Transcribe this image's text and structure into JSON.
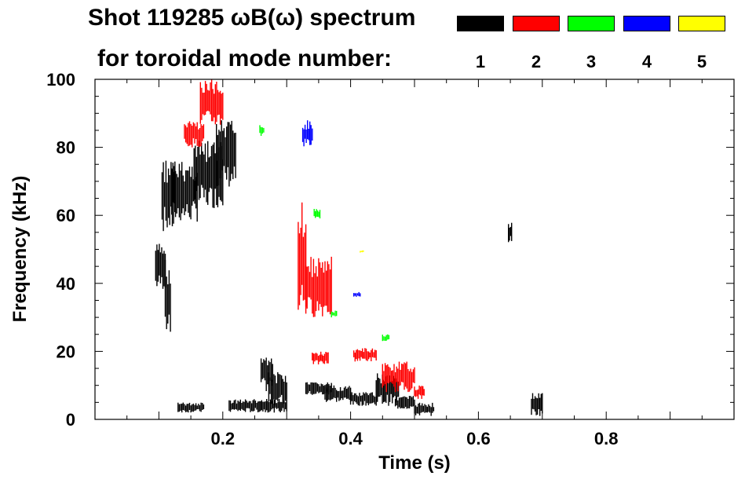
{
  "chart_data": {
    "type": "heatmap",
    "title_line1": "Shot 119285 ωB(ω) spectrum",
    "title_line2": "for toroidal mode number:",
    "xlabel": "Time (s)",
    "ylabel": "Frequency (kHz)",
    "xlim": [
      0.0,
      1.0
    ],
    "ylim": [
      0,
      100
    ],
    "x_ticks": [
      {
        "value": 0.2,
        "label": "0.2"
      },
      {
        "value": 0.4,
        "label": "0.4"
      },
      {
        "value": 0.6,
        "label": "0.6"
      },
      {
        "value": 0.8,
        "label": "0.8"
      }
    ],
    "y_ticks": [
      {
        "value": 0,
        "label": "0"
      },
      {
        "value": 20,
        "label": "20"
      },
      {
        "value": 40,
        "label": "40"
      },
      {
        "value": 60,
        "label": "60"
      },
      {
        "value": 80,
        "label": "80"
      },
      {
        "value": 100,
        "label": "100"
      }
    ],
    "legend": [
      {
        "mode": "1",
        "color": "#000000"
      },
      {
        "mode": "2",
        "color": "#ff0000"
      },
      {
        "mode": "3",
        "color": "#00ff00"
      },
      {
        "mode": "4",
        "color": "#0000ff"
      },
      {
        "mode": "5",
        "color": "#ffff00"
      }
    ],
    "series": [
      {
        "mode": "1",
        "color": "#000000",
        "regions": [
          {
            "t0": 0.095,
            "t1": 0.11,
            "f0": 38,
            "f1": 52
          },
          {
            "t0": 0.105,
            "t1": 0.125,
            "f0": 55,
            "f1": 77
          },
          {
            "t0": 0.12,
            "t1": 0.16,
            "f0": 58,
            "f1": 76
          },
          {
            "t0": 0.155,
            "t1": 0.2,
            "f0": 62,
            "f1": 82
          },
          {
            "t0": 0.19,
            "t1": 0.22,
            "f0": 68,
            "f1": 88
          },
          {
            "t0": 0.11,
            "t1": 0.118,
            "f0": 22,
            "f1": 48
          },
          {
            "t0": 0.26,
            "t1": 0.278,
            "f0": 8,
            "f1": 20
          },
          {
            "t0": 0.272,
            "t1": 0.3,
            "f0": 4,
            "f1": 14
          },
          {
            "t0": 0.13,
            "t1": 0.17,
            "f0": 2,
            "f1": 5
          },
          {
            "t0": 0.21,
            "t1": 0.3,
            "f0": 2,
            "f1": 6
          },
          {
            "t0": 0.33,
            "t1": 0.37,
            "f0": 7,
            "f1": 11
          },
          {
            "t0": 0.36,
            "t1": 0.4,
            "f0": 5,
            "f1": 10
          },
          {
            "t0": 0.4,
            "t1": 0.44,
            "f0": 4,
            "f1": 8
          },
          {
            "t0": 0.44,
            "t1": 0.475,
            "f0": 4,
            "f1": 14
          },
          {
            "t0": 0.47,
            "t1": 0.5,
            "f0": 3,
            "f1": 7
          },
          {
            "t0": 0.5,
            "t1": 0.53,
            "f0": 1,
            "f1": 5
          },
          {
            "t0": 0.647,
            "t1": 0.652,
            "f0": 52,
            "f1": 58
          },
          {
            "t0": 0.683,
            "t1": 0.7,
            "f0": 1,
            "f1": 8
          }
        ]
      },
      {
        "mode": "2",
        "color": "#ff0000",
        "regions": [
          {
            "t0": 0.14,
            "t1": 0.17,
            "f0": 80,
            "f1": 88
          },
          {
            "t0": 0.165,
            "t1": 0.2,
            "f0": 86,
            "f1": 100
          },
          {
            "t0": 0.318,
            "t1": 0.33,
            "f0": 30,
            "f1": 65
          },
          {
            "t0": 0.33,
            "t1": 0.37,
            "f0": 30,
            "f1": 48
          },
          {
            "t0": 0.34,
            "t1": 0.365,
            "f0": 16,
            "f1": 20
          },
          {
            "t0": 0.405,
            "t1": 0.44,
            "f0": 17,
            "f1": 21
          },
          {
            "t0": 0.45,
            "t1": 0.5,
            "f0": 8,
            "f1": 17
          },
          {
            "t0": 0.5,
            "t1": 0.515,
            "f0": 6,
            "f1": 10
          }
        ]
      },
      {
        "mode": "3",
        "color": "#00ff00",
        "regions": [
          {
            "t0": 0.258,
            "t1": 0.264,
            "f0": 83,
            "f1": 87
          },
          {
            "t0": 0.343,
            "t1": 0.352,
            "f0": 59,
            "f1": 62
          },
          {
            "t0": 0.37,
            "t1": 0.378,
            "f0": 30,
            "f1": 32
          },
          {
            "t0": 0.45,
            "t1": 0.46,
            "f0": 23,
            "f1": 25
          }
        ]
      },
      {
        "mode": "4",
        "color": "#0000ff",
        "regions": [
          {
            "t0": 0.325,
            "t1": 0.34,
            "f0": 80,
            "f1": 88
          },
          {
            "t0": 0.405,
            "t1": 0.415,
            "f0": 36,
            "f1": 37.5
          }
        ]
      },
      {
        "mode": "5",
        "color": "#ffff00",
        "regions": [
          {
            "t0": 0.415,
            "t1": 0.42,
            "f0": 49,
            "f1": 49.8
          }
        ]
      }
    ]
  }
}
